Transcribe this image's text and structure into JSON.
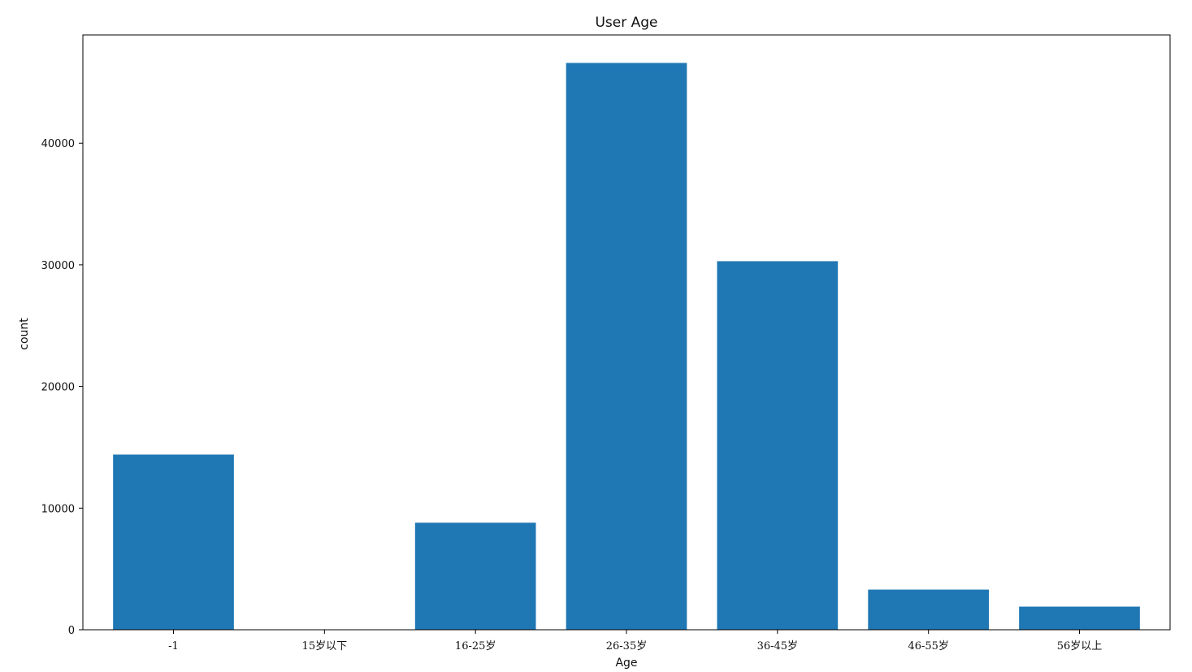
{
  "chart_data": {
    "type": "bar",
    "title": "User Age",
    "xlabel": "Age",
    "ylabel": "count",
    "categories": [
      "-1",
      "15岁以下",
      "16-25岁",
      "26-35岁",
      "36-45岁",
      "46-55岁",
      "56岁以上"
    ],
    "values": [
      14400,
      0,
      8800,
      46600,
      30300,
      3300,
      1900
    ],
    "ylim": [
      0,
      48900
    ],
    "yticks": [
      0,
      10000,
      20000,
      30000,
      40000
    ],
    "ytick_labels": [
      "0",
      "10000",
      "20000",
      "30000",
      "40000"
    ],
    "grid": false,
    "legend": "none",
    "bar_color": "#1f77b4"
  }
}
